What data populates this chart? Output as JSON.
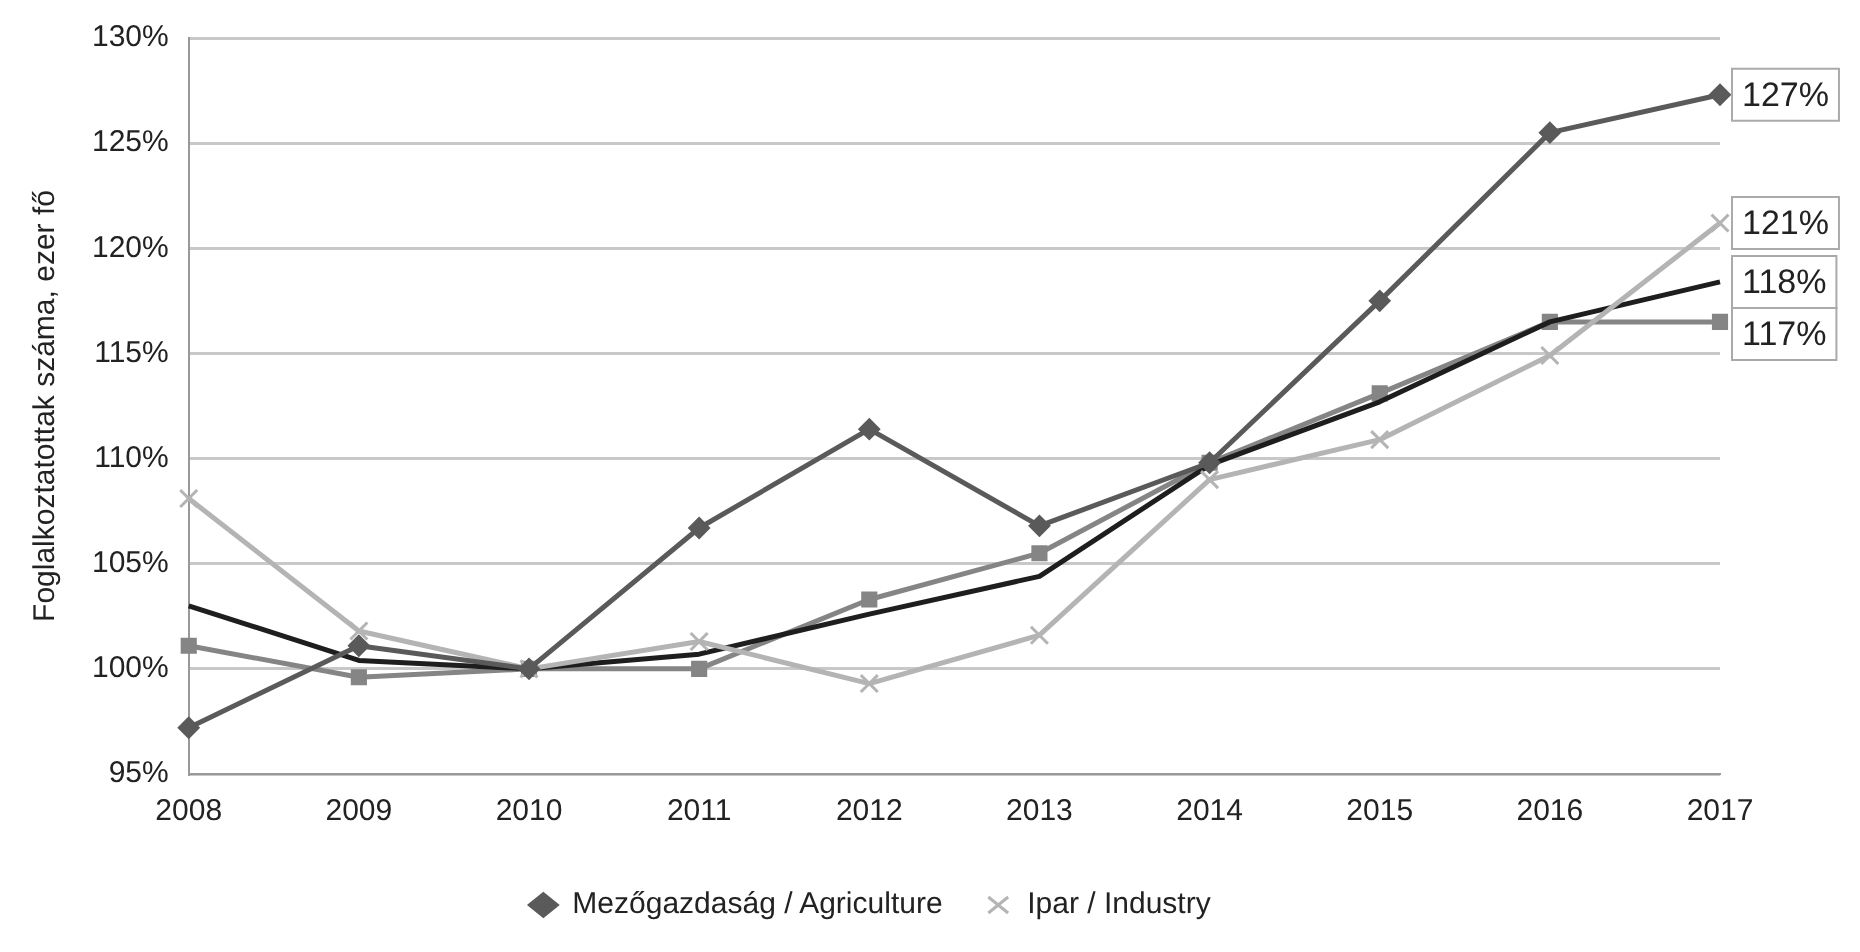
{
  "chart_data": {
    "type": "line",
    "ylabel": "Foglalkoztatottak száma, ezer fő",
    "categories": [
      "2008",
      "2009",
      "2010",
      "2011",
      "2012",
      "2013",
      "2014",
      "2015",
      "2016",
      "2017"
    ],
    "series": [
      {
        "name": "Mezőgazdaság / Agriculture",
        "color": "#5a5a5a",
        "marker": "diamond",
        "values": [
          97.2,
          101.1,
          100,
          106.7,
          111.4,
          106.8,
          109.8,
          117.5,
          125.5,
          127.3
        ],
        "value_labels": [
          null,
          null,
          null,
          null,
          null,
          null,
          null,
          null,
          null,
          "127%"
        ]
      },
      {
        "name": "Ipar / Industry",
        "color": "#b4b4b4",
        "marker": "cross",
        "values": [
          108.1,
          101.8,
          100,
          101.3,
          99.3,
          101.6,
          109,
          110.9,
          114.9,
          121.2
        ],
        "value_labels": [
          null,
          null,
          null,
          null,
          null,
          null,
          null,
          null,
          null,
          "121%"
        ]
      },
      {
        "color": "#1e1e1e",
        "marker": "none",
        "values": [
          103,
          100.4,
          100,
          100.7,
          102.6,
          104.4,
          109.7,
          112.7,
          116.5,
          118.4
        ],
        "value_labels": [
          null,
          null,
          null,
          null,
          null,
          null,
          null,
          null,
          null,
          "118%"
        ]
      },
      {
        "color": "#858585",
        "marker": "square",
        "values": [
          101.1,
          99.6,
          100,
          100,
          103.3,
          105.5,
          109.8,
          113.1,
          116.5,
          116.5
        ],
        "value_labels": [
          null,
          null,
          null,
          null,
          null,
          null,
          null,
          null,
          null,
          "117%"
        ]
      }
    ],
    "ylim": [
      95,
      130
    ],
    "yticks": [
      {
        "value": 95,
        "label": "95%"
      },
      {
        "value": 100,
        "label": "100%"
      },
      {
        "value": 105,
        "label": "105%"
      },
      {
        "value": 110,
        "label": "110%"
      },
      {
        "value": 115,
        "label": "115%"
      },
      {
        "value": 120,
        "label": "120%"
      },
      {
        "value": 125,
        "label": "125%"
      },
      {
        "value": 130,
        "label": "130%"
      }
    ],
    "grid": "y",
    "legend": "bottom"
  }
}
